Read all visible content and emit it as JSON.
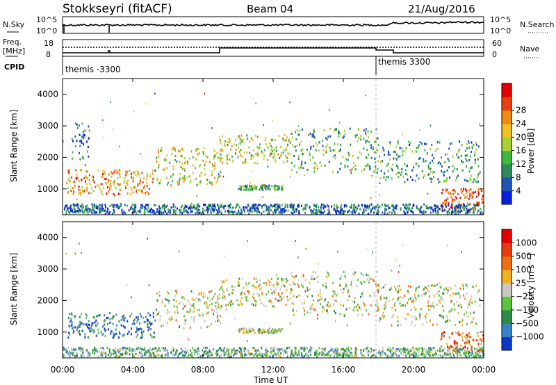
{
  "header": {
    "station": "Stokkseyri (fitACF)",
    "beam": "Beam 04",
    "date": "21/Aug/2016"
  },
  "sky_panel": {
    "left_label": "N.Sky",
    "right_label": "N.Search",
    "left_ticks": [
      "10^5",
      "10^0"
    ],
    "right_ticks": [
      "10^5",
      "10^0"
    ]
  },
  "freq_panel": {
    "left_label_1": "Freq.",
    "left_label_2": "[MHz]",
    "right_label": "Nave",
    "left_ticks": [
      "18",
      "8"
    ],
    "right_ticks": [
      "60",
      "0"
    ]
  },
  "cpid_panel": {
    "label": "CPID",
    "modes": [
      {
        "name": "themis -3300",
        "start_hour": 0
      },
      {
        "name": "themis 3300",
        "start_hour": 18.0
      }
    ]
  },
  "x_axis": {
    "label": "Time UT",
    "ticks": [
      "00:00",
      "04:00",
      "08:00",
      "12:00",
      "16:00",
      "20:00",
      "00:00"
    ],
    "range_hours": [
      0,
      24
    ]
  },
  "chart_data": [
    {
      "type": "heatmap",
      "name": "Power",
      "ylabel": "Slant Range [km]",
      "ylim": [
        180,
        4500
      ],
      "yticks": [
        "1000",
        "2000",
        "3000",
        "4000"
      ],
      "colorbar_label": "Power [dB]",
      "colorbar_ticks": [
        "4",
        "8",
        "12",
        "16",
        "20",
        "24",
        "28"
      ],
      "colorbar_colors": [
        "#0a1ee0",
        "#1e55b4",
        "#2e8a5c",
        "#3cba3c",
        "#a8d030",
        "#f0c020",
        "#f08a10",
        "#e84010",
        "#e00000"
      ],
      "regions": [
        {
          "t": [
            0.2,
            5.3
          ],
          "r": [
            800,
            1600
          ],
          "level": 0.7
        },
        {
          "t": [
            0.5,
            1.5
          ],
          "r": [
            1900,
            3100
          ],
          "level": 0.2
        },
        {
          "t": [
            5.3,
            9.0
          ],
          "r": [
            1100,
            2300
          ],
          "level": 0.55
        },
        {
          "t": [
            8.9,
            13.0
          ],
          "r": [
            1800,
            2700
          ],
          "level": 0.5
        },
        {
          "t": [
            13.0,
            18.0
          ],
          "r": [
            1500,
            2900
          ],
          "level": 0.35
        },
        {
          "t": [
            18.0,
            23.8
          ],
          "r": [
            1200,
            2500
          ],
          "level": 0.3
        },
        {
          "t": [
            21.5,
            24.0
          ],
          "r": [
            300,
            1000
          ],
          "level": 0.85
        },
        {
          "t": [
            10.0,
            12.5
          ],
          "r": [
            950,
            1100
          ],
          "level": 0.35
        },
        {
          "t": [
            0.0,
            24.0
          ],
          "r": [
            200,
            500
          ],
          "level": 0.2
        }
      ]
    },
    {
      "type": "heatmap",
      "name": "Velocity",
      "ylabel": "Slant Range [km]",
      "ylim": [
        180,
        4500
      ],
      "yticks": [
        "1000",
        "2000",
        "3000",
        "4000"
      ],
      "colorbar_label": "Velocity [m s⁻¹]",
      "colorbar_ticks": [
        "1000",
        "500",
        "100",
        "25",
        "−25",
        "−100",
        "−500",
        "−1000"
      ],
      "colorbar_colors": [
        "#0c38c8",
        "#3a82c8",
        "#2f8a45",
        "#5cc43c",
        "#c8c8c0",
        "#f0b020",
        "#f07010",
        "#e83a10",
        "#e00000"
      ],
      "regions": [
        {
          "t": [
            0.2,
            5.3
          ],
          "r": [
            800,
            1600
          ],
          "level": 0.2
        },
        {
          "t": [
            5.3,
            9.0
          ],
          "r": [
            1100,
            2300
          ],
          "level": 0.5
        },
        {
          "t": [
            8.9,
            13.0
          ],
          "r": [
            1800,
            2700
          ],
          "level": 0.5
        },
        {
          "t": [
            13.0,
            18.0
          ],
          "r": [
            1500,
            2900
          ],
          "level": 0.5
        },
        {
          "t": [
            18.0,
            23.8
          ],
          "r": [
            1200,
            2500
          ],
          "level": 0.5
        },
        {
          "t": [
            21.5,
            24.0
          ],
          "r": [
            300,
            1000
          ],
          "level": 0.75
        },
        {
          "t": [
            10.0,
            12.5
          ],
          "r": [
            950,
            1100
          ],
          "level": 0.5
        },
        {
          "t": [
            0.0,
            24.0
          ],
          "r": [
            200,
            500
          ],
          "level": 0.35
        }
      ]
    }
  ]
}
